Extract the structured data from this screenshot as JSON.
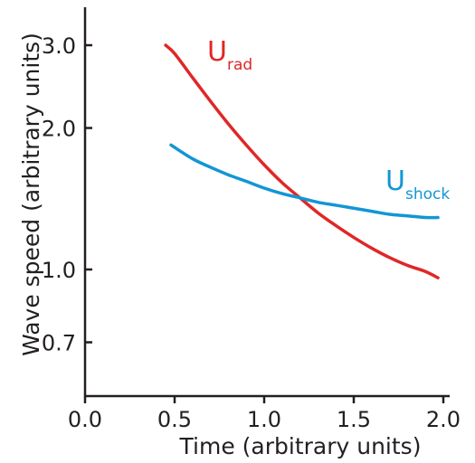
{
  "chart_data": {
    "type": "line",
    "title": "",
    "xlabel": "Time (arbitrary units)",
    "ylabel": "Wave speed (arbitrary units)",
    "xlim": [
      0.0,
      2.0
    ],
    "ylim": [
      0.55,
      3.6
    ],
    "yscale": "log",
    "grid": false,
    "legend": "none",
    "x_ticks": [
      "0.0",
      "0.5",
      "1.0",
      "1.5",
      "2.0"
    ],
    "y_ticks": [
      "0.7",
      "1.0",
      "2.0",
      "3.0"
    ],
    "series": [
      {
        "label_main": "U",
        "label_sub": "rad",
        "color": "#e02726",
        "x": [
          0.45,
          0.5,
          0.6,
          0.7,
          0.8,
          0.9,
          1.0,
          1.1,
          1.2,
          1.3,
          1.4,
          1.5,
          1.6,
          1.7,
          1.8,
          1.9,
          1.97
        ],
        "y": [
          3.0,
          2.88,
          2.56,
          2.28,
          2.04,
          1.84,
          1.67,
          1.53,
          1.42,
          1.32,
          1.24,
          1.17,
          1.11,
          1.06,
          1.02,
          0.99,
          0.96
        ]
      },
      {
        "label_main": "U",
        "label_sub": "shock",
        "color": "#1296d4",
        "x": [
          0.48,
          0.6,
          0.7,
          0.8,
          0.9,
          1.0,
          1.1,
          1.2,
          1.3,
          1.4,
          1.5,
          1.6,
          1.7,
          1.8,
          1.9,
          1.97
        ],
        "y": [
          1.84,
          1.72,
          1.65,
          1.59,
          1.54,
          1.49,
          1.45,
          1.42,
          1.39,
          1.37,
          1.35,
          1.33,
          1.31,
          1.3,
          1.29,
          1.29
        ]
      }
    ]
  }
}
